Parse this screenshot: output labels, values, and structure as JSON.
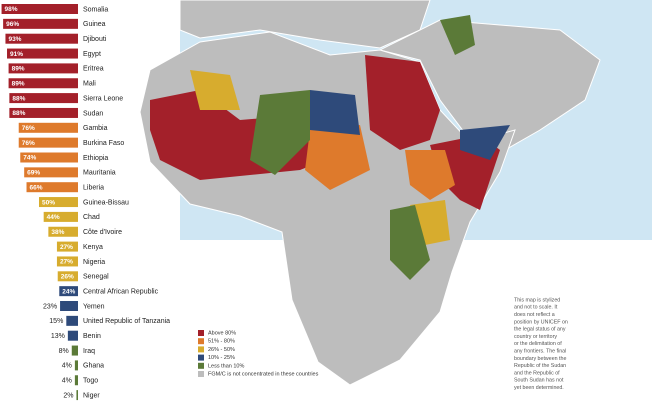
{
  "chart_data": {
    "type": "bar",
    "categories": [
      "Somalia",
      "Guinea",
      "Djibouti",
      "Egypt",
      "Eritrea",
      "Mali",
      "Sierra Leone",
      "Sudan",
      "Gambia",
      "Burkina Faso",
      "Ethiopia",
      "Mauritania",
      "Liberia",
      "Guinea-Bissau",
      "Chad",
      "Côte d'Ivoire",
      "Kenya",
      "Nigeria",
      "Senegal",
      "Central African Republic",
      "Yemen",
      "United Republic of Tanzania",
      "Benin",
      "Iraq",
      "Ghana",
      "Togo",
      "Niger"
    ],
    "values": [
      98,
      96,
      93,
      91,
      89,
      89,
      88,
      88,
      76,
      76,
      74,
      69,
      66,
      50,
      44,
      38,
      27,
      27,
      26,
      24,
      23,
      15,
      13,
      8,
      4,
      4,
      2
    ],
    "value_labels": [
      "98%",
      "96%",
      "93%",
      "91%",
      "89%",
      "89%",
      "88%",
      "88%",
      "76%",
      "76%",
      "74%",
      "69%",
      "66%",
      "50%",
      "44%",
      "38%",
      "27%",
      "27%",
      "26%",
      "24%",
      "23%",
      "15%",
      "13%",
      "8%",
      "4%",
      "4%",
      "2%"
    ],
    "colors": [
      "#a3202a",
      "#a3202a",
      "#a3202a",
      "#a3202a",
      "#a3202a",
      "#a3202a",
      "#a3202a",
      "#a3202a",
      "#de7a2c",
      "#de7a2c",
      "#de7a2c",
      "#de7a2c",
      "#de7a2c",
      "#d7ac2e",
      "#d7ac2e",
      "#d7ac2e",
      "#d7ac2e",
      "#d7ac2e",
      "#d7ac2e",
      "#2e4a7a",
      "#2e4a7a",
      "#2e4a7a",
      "#2e4a7a",
      "#5b7a38",
      "#5b7a38",
      "#5b7a38",
      "#5b7a38"
    ],
    "xlim": [
      0,
      100
    ]
  },
  "legend": [
    {
      "label": "Above 80%",
      "color": "#a3202a"
    },
    {
      "label": "51% - 80%",
      "color": "#de7a2c"
    },
    {
      "label": "26% - 50%",
      "color": "#d7ac2e"
    },
    {
      "label": "10% - 25%",
      "color": "#2e4a7a"
    },
    {
      "label": "Less than 10%",
      "color": "#5b7a38"
    },
    {
      "label": "FGM/C is not concentrated in these countries",
      "color": "#bdbdbd"
    }
  ],
  "note": [
    "This map is stylized",
    "and not to scale. It",
    "does not reflect a",
    "position by UNICEF on",
    "the legal status of any",
    "country or territory",
    "or the delimitation of",
    "any frontiers. The final",
    "boundary between the",
    "Republic of the Sudan",
    "and the Republic of",
    "South Sudan has not",
    "yet been determined."
  ]
}
